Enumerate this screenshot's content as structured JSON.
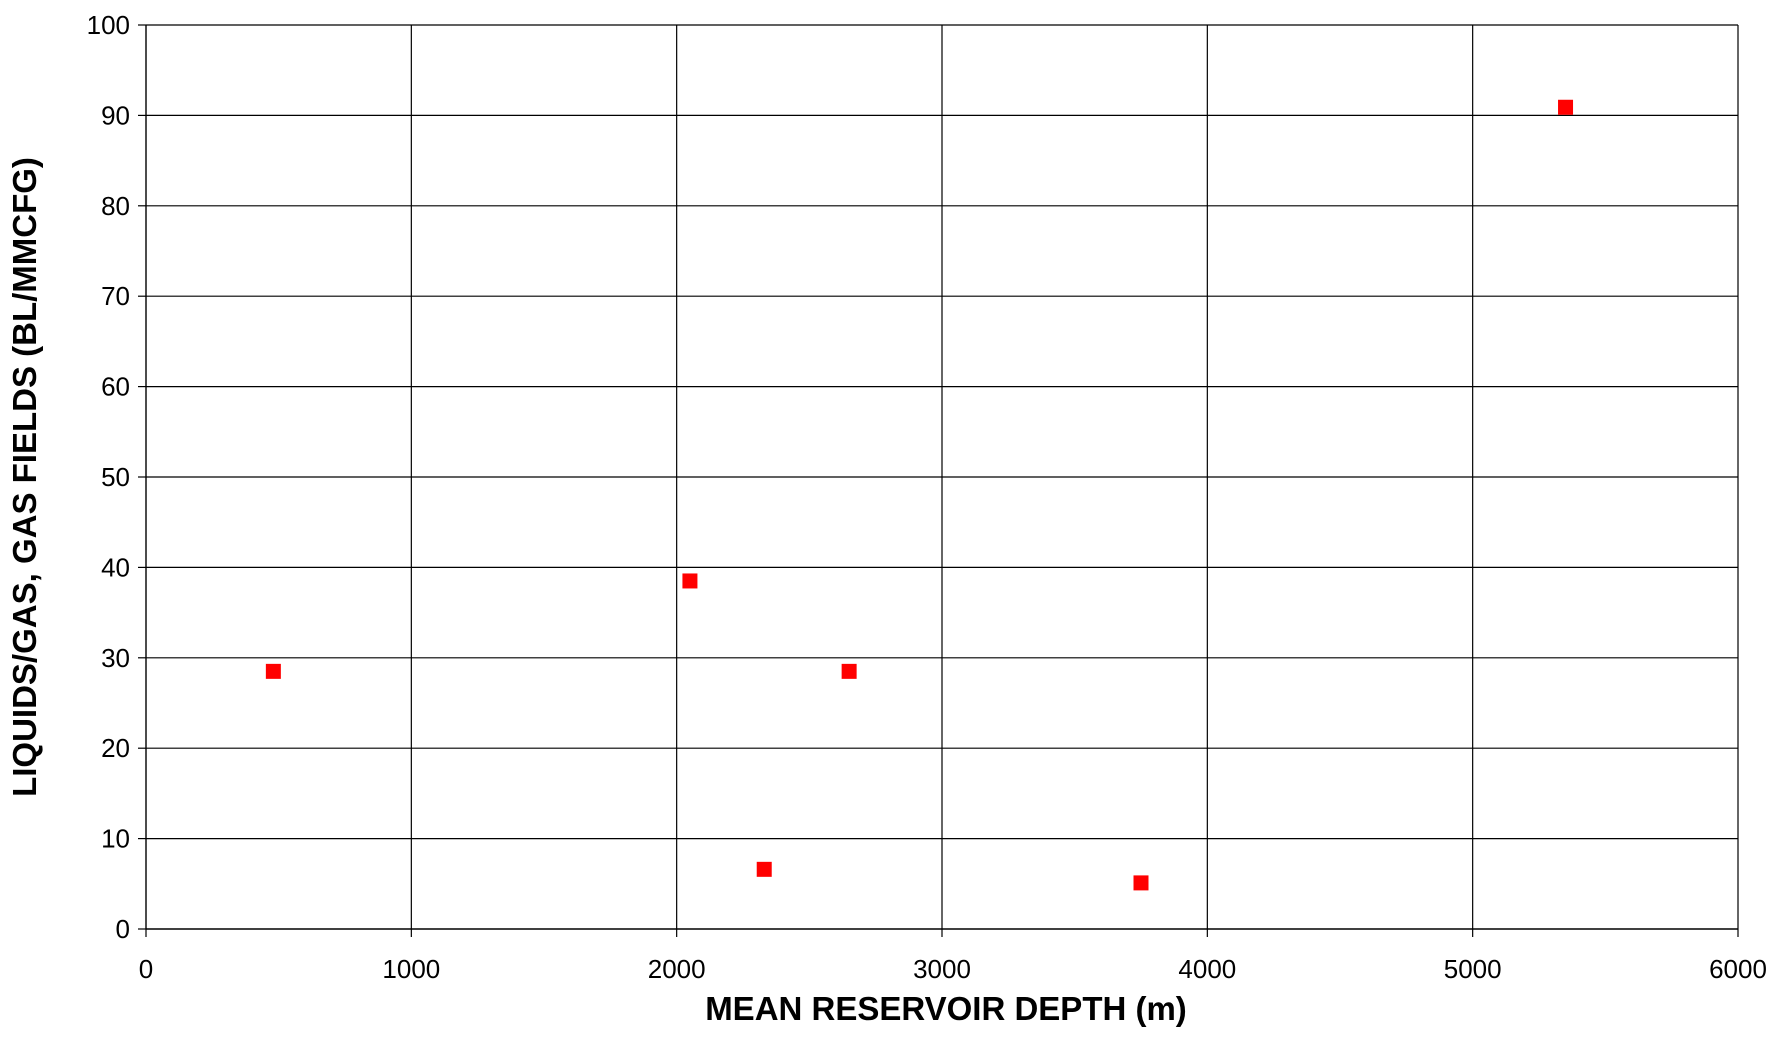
{
  "chart_data": {
    "type": "scatter",
    "title": "",
    "xlabel": "MEAN RESERVOIR DEPTH (m)",
    "ylabel": "LIQUIDS/GAS, GAS FIELDS (BL/MMCFG)",
    "xlim": [
      0,
      6000
    ],
    "ylim": [
      0,
      100
    ],
    "x_ticks": [
      0,
      1000,
      2000,
      3000,
      4000,
      5000,
      6000
    ],
    "y_ticks": [
      0,
      10,
      20,
      30,
      40,
      50,
      60,
      70,
      80,
      90,
      100
    ],
    "grid": true,
    "legend": "none",
    "marker": "square",
    "series": [
      {
        "color": "#ff0000",
        "points": [
          {
            "x": 480,
            "y": 28.5
          },
          {
            "x": 2050,
            "y": 38.5
          },
          {
            "x": 2330,
            "y": 6.6
          },
          {
            "x": 2650,
            "y": 28.5
          },
          {
            "x": 3750,
            "y": 5.1
          },
          {
            "x": 5350,
            "y": 90.9
          }
        ]
      }
    ]
  }
}
